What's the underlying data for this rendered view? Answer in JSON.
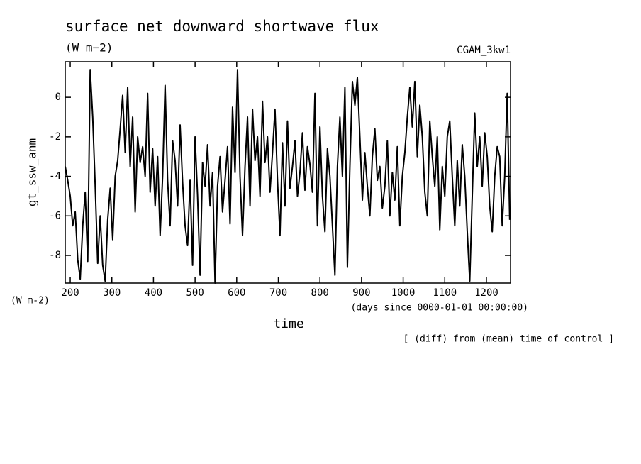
{
  "chart_data": {
    "type": "line",
    "title": "surface net downward shortwave flux",
    "subtitle": "(W m−2)",
    "annotation_right": "CGAM_3kw1",
    "y_label": "gt_ssw_anm",
    "y_unit": "(W m-2)",
    "x_unit": "(days since 0000-01-01 00:00:00)",
    "x_label": "time",
    "note": "[ (diff) from (mean) time of control ]",
    "xlim": [
      188,
      1258
    ],
    "ylim": [
      -9.4,
      1.8
    ],
    "xticks": [
      200,
      300,
      400,
      500,
      600,
      700,
      800,
      900,
      1000,
      1100,
      1200
    ],
    "yticks": [
      0,
      -2,
      -4,
      -6,
      -8
    ],
    "series": [
      {
        "color": "#000000",
        "x": [
          188,
          194,
          200,
          206,
          212,
          218,
          224,
          230,
          236,
          242,
          248,
          254,
          260,
          266,
          272,
          278,
          284,
          290,
          296,
          302,
          308,
          314,
          320,
          326,
          332,
          338,
          344,
          350,
          356,
          362,
          368,
          374,
          380,
          386,
          392,
          398,
          404,
          410,
          416,
          422,
          428,
          434,
          440,
          446,
          452,
          458,
          464,
          470,
          476,
          482,
          488,
          494,
          500,
          506,
          512,
          518,
          524,
          530,
          536,
          542,
          548,
          554,
          560,
          566,
          572,
          578,
          584,
          590,
          596,
          602,
          608,
          614,
          620,
          626,
          632,
          638,
          644,
          650,
          656,
          662,
          668,
          674,
          680,
          686,
          692,
          698,
          704,
          710,
          716,
          722,
          728,
          734,
          740,
          746,
          752,
          758,
          764,
          770,
          776,
          782,
          788,
          794,
          800,
          806,
          812,
          818,
          824,
          830,
          836,
          842,
          848,
          854,
          860,
          866,
          872,
          878,
          884,
          890,
          896,
          902,
          908,
          914,
          920,
          926,
          932,
          938,
          944,
          950,
          956,
          962,
          968,
          974,
          980,
          986,
          992,
          998,
          1004,
          1010,
          1016,
          1022,
          1028,
          1034,
          1040,
          1046,
          1052,
          1058,
          1064,
          1070,
          1076,
          1082,
          1088,
          1094,
          1100,
          1106,
          1112,
          1118,
          1124,
          1130,
          1136,
          1142,
          1148,
          1154,
          1160,
          1166,
          1172,
          1178,
          1184,
          1190,
          1196,
          1202,
          1208,
          1214,
          1220,
          1226,
          1232,
          1238,
          1244,
          1250,
          1256
        ],
        "values": [
          -3.5,
          -4.2,
          -5.0,
          -6.5,
          -5.8,
          -8.2,
          -9.2,
          -6.5,
          -4.8,
          -8.3,
          1.4,
          -1.0,
          -4.5,
          -8.4,
          -6.0,
          -8.5,
          -9.3,
          -6.2,
          -4.6,
          -7.2,
          -4.0,
          -3.2,
          -1.6,
          0.1,
          -2.8,
          0.5,
          -3.5,
          -1.0,
          -5.8,
          -2.0,
          -3.3,
          -2.5,
          -4.0,
          0.2,
          -4.8,
          -2.6,
          -5.5,
          -3.0,
          -7.0,
          -4.0,
          0.6,
          -4.2,
          -6.5,
          -2.2,
          -3.2,
          -5.5,
          -1.4,
          -4.3,
          -6.5,
          -7.5,
          -4.2,
          -8.5,
          -2.0,
          -5.0,
          -9.0,
          -3.3,
          -4.5,
          -2.4,
          -5.5,
          -3.8,
          -9.4,
          -4.5,
          -3.0,
          -5.8,
          -4.2,
          -2.5,
          -6.4,
          -0.5,
          -3.8,
          1.4,
          -4.0,
          -7.0,
          -3.5,
          -1.0,
          -5.5,
          -0.6,
          -3.2,
          -2.0,
          -5.0,
          -0.2,
          -3.3,
          -2.0,
          -4.8,
          -2.8,
          -0.6,
          -4.2,
          -7.0,
          -2.3,
          -5.5,
          -1.2,
          -4.6,
          -3.5,
          -2.2,
          -5.0,
          -3.8,
          -1.8,
          -4.7,
          -2.5,
          -3.4,
          -4.8,
          0.2,
          -6.5,
          -1.5,
          -5.0,
          -6.8,
          -2.6,
          -4.0,
          -6.5,
          -9.0,
          -3.5,
          -1.0,
          -4.0,
          0.5,
          -8.6,
          -3.5,
          0.8,
          -0.4,
          1.0,
          -2.0,
          -5.2,
          -2.8,
          -4.5,
          -6.0,
          -3.0,
          -1.6,
          -4.2,
          -3.5,
          -5.6,
          -4.5,
          -2.2,
          -6.0,
          -3.8,
          -5.2,
          -2.5,
          -6.5,
          -4.0,
          -2.8,
          -1.0,
          0.5,
          -1.5,
          0.8,
          -3.0,
          -0.4,
          -2.0,
          -4.8,
          -6.0,
          -1.2,
          -3.0,
          -4.5,
          -2.0,
          -6.7,
          -3.5,
          -5.0,
          -2.0,
          -1.2,
          -4.0,
          -6.5,
          -3.2,
          -5.5,
          -2.4,
          -4.0,
          -6.8,
          -9.3,
          -5.0,
          -0.8,
          -3.5,
          -2.0,
          -4.5,
          -1.8,
          -3.0,
          -5.5,
          -6.8,
          -4.0,
          -2.5,
          -3.0,
          -6.5,
          -4.0,
          0.2,
          -6.2
        ]
      }
    ]
  }
}
